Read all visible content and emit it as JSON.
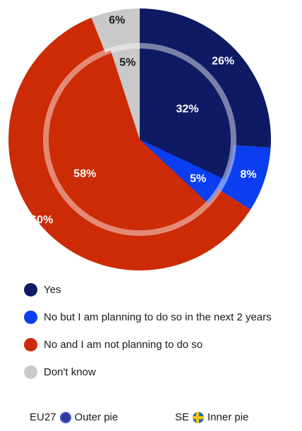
{
  "chart_data": {
    "type": "pie",
    "categories": [
      "Yes",
      "No but I am planning to do so in the next 2 years",
      "No and I am not planning to do so",
      "Don't know"
    ],
    "colors": [
      "#0e1a63",
      "#0a3ef0",
      "#cc2b06",
      "#c9c9c9"
    ],
    "series": [
      {
        "name": "EU27",
        "ring": "outer",
        "values": [
          26,
          8,
          60,
          6
        ],
        "labels": [
          "26%",
          "8%",
          "60%",
          "6%"
        ]
      },
      {
        "name": "SE",
        "ring": "inner",
        "values": [
          32,
          5,
          58,
          5
        ],
        "labels": [
          "32%",
          "5%",
          "58%",
          "5%"
        ]
      }
    ],
    "legend_position": "bottom",
    "footer": {
      "outer": {
        "country": "EU27",
        "flag_icon": "eu-flag-icon",
        "caption": "Outer pie"
      },
      "inner": {
        "country": "SE",
        "flag_icon": "sweden-flag-icon",
        "caption": "Inner pie"
      }
    }
  }
}
